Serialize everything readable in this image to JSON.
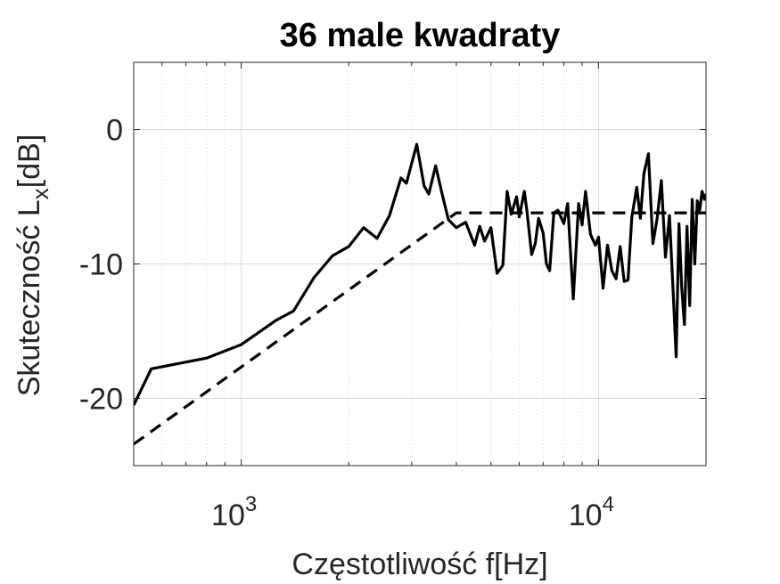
{
  "chart_data": {
    "type": "line",
    "title": "36 male kwadraty",
    "xlabel": "Częstotliwość f[Hz]",
    "ylabel": "Skuteczność L",
    "ylabel_sub": "x",
    "ylabel_unit": "[dB]",
    "xscale": "log",
    "xlim": [
      500,
      20000
    ],
    "ylim": [
      -25,
      5
    ],
    "grid": true,
    "xticks": [
      {
        "value": 1000,
        "base": "10",
        "exp": "3"
      },
      {
        "value": 10000,
        "base": "10",
        "exp": "4"
      }
    ],
    "yticks": [
      {
        "value": 0,
        "label": "0"
      },
      {
        "value": -10,
        "label": "-10"
      },
      {
        "value": -20,
        "label": "-20"
      }
    ],
    "series": [
      {
        "style": "solid",
        "color": "#000000",
        "x": [
          500,
          560,
          800,
          1000,
          1250,
          1400,
          1600,
          1800,
          2000,
          2200,
          2400,
          2600,
          2800,
          2900,
          3100,
          3250,
          3350,
          3500,
          3650,
          3800,
          4000,
          4250,
          4500,
          4650,
          4800,
          5000,
          5200,
          5400,
          5550,
          5700,
          5900,
          6000,
          6200,
          6300,
          6500,
          6650,
          6800,
          7000,
          7150,
          7300,
          7500,
          7700,
          8000,
          8200,
          8500,
          8800,
          9000,
          9200,
          9500,
          9800,
          10000,
          10300,
          10600,
          10900,
          11200,
          11500,
          11800,
          12100,
          12400,
          12800,
          13100,
          13400,
          13800,
          14200,
          14600,
          15000,
          15400,
          15800,
          16200,
          16500,
          16800,
          17100,
          17400,
          17700,
          18000,
          18300,
          18600,
          18900,
          19200,
          19500,
          19800,
          20000
        ],
        "y": [
          -20.5,
          -17.8,
          -17.0,
          -16.0,
          -14.2,
          -13.5,
          -11.0,
          -9.4,
          -8.7,
          -7.3,
          -8.1,
          -6.4,
          -3.6,
          -4.0,
          -1.1,
          -4.2,
          -4.8,
          -2.7,
          -4.8,
          -6.7,
          -7.3,
          -6.9,
          -8.6,
          -7.2,
          -8.3,
          -7.3,
          -10.7,
          -10.1,
          -4.6,
          -6.3,
          -5.0,
          -6.5,
          -4.6,
          -6.0,
          -9.3,
          -8.5,
          -6.6,
          -7.7,
          -10.0,
          -10.5,
          -6.2,
          -6.0,
          -7.0,
          -5.5,
          -12.6,
          -5.5,
          -7.1,
          -4.6,
          -7.8,
          -8.6,
          -8.0,
          -11.8,
          -8.6,
          -10.5,
          -11.1,
          -8.7,
          -11.3,
          -11.2,
          -6.5,
          -4.3,
          -6.6,
          -3.3,
          -1.8,
          -8.5,
          -6.6,
          -3.8,
          -9.5,
          -6.4,
          -12.3,
          -16.9,
          -7.0,
          -11.7,
          -14.5,
          -7.2,
          -13.1,
          -5.2,
          -10.0,
          -5.3,
          -6.0,
          -4.6,
          -5.2,
          -4.8
        ]
      },
      {
        "style": "dashed",
        "color": "#000000",
        "x": [
          500,
          4000,
          20000
        ],
        "y": [
          -23.4,
          -6.2,
          -6.2
        ]
      }
    ]
  }
}
